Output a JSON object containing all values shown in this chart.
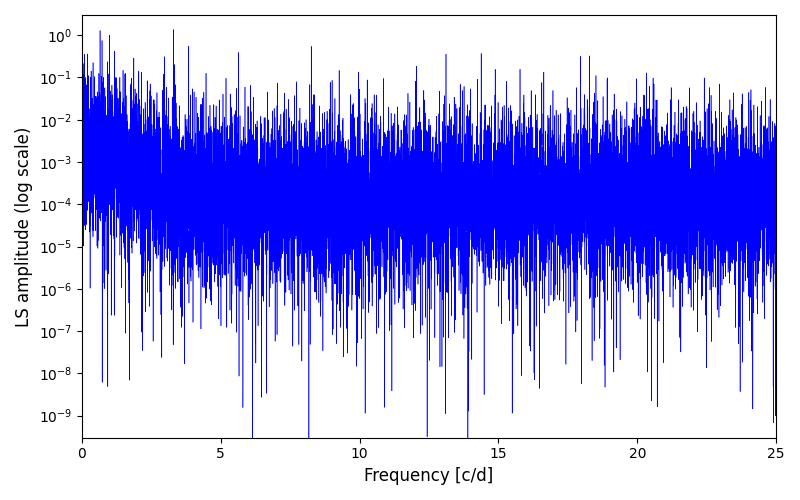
{
  "xlabel": "Frequency [c/d]",
  "ylabel": "LS amplitude (log scale)",
  "xlim": [
    0,
    25
  ],
  "ymin": 3e-10,
  "ymax": 3.0,
  "line_color": "#0000FF",
  "background_color": "#ffffff",
  "fig_facecolor": "#ffffff",
  "xlabel_fontsize": 12,
  "ylabel_fontsize": 12,
  "tick_fontsize": 10,
  "n_points": 12000,
  "peak_freq": 1.0,
  "peak_amplitude": 1.0,
  "seed": 7
}
